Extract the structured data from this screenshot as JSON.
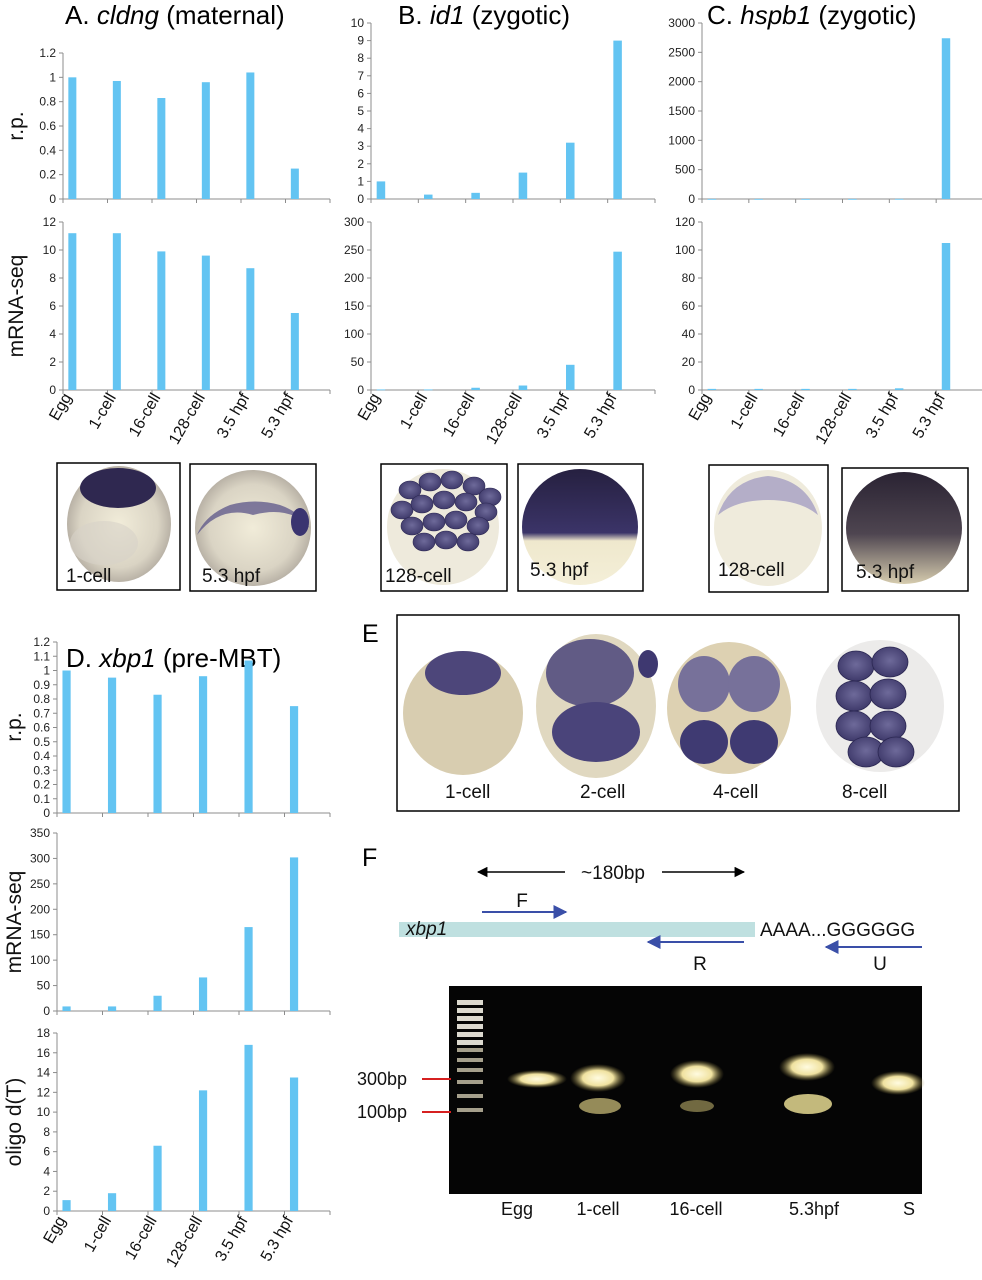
{
  "chart_data": [
    {
      "id": "A",
      "type": "bar",
      "title_prefix": "A.",
      "title_gene": "cldng",
      "title_suffix": "(maternal)",
      "categories": [
        "Egg",
        "1-cell",
        "16-cell",
        "128-cell",
        "3.5 hpf",
        "5.3 hpf"
      ],
      "rows": [
        {
          "ylabel": "r.p.",
          "yticks": [
            "0",
            "0.2",
            "0.4",
            "0.6",
            "0.8",
            "1",
            "1.2"
          ],
          "ylim": [
            0,
            1.2
          ],
          "values": [
            1.0,
            0.97,
            0.83,
            0.96,
            1.04,
            0.25
          ]
        },
        {
          "ylabel": "mRNA-seq",
          "yticks": [
            "0",
            "2",
            "4",
            "6",
            "8",
            "10",
            "12"
          ],
          "ylim": [
            0,
            12
          ],
          "values": [
            11.2,
            11.2,
            9.9,
            9.6,
            8.7,
            5.5
          ]
        }
      ]
    },
    {
      "id": "B",
      "type": "bar",
      "title_prefix": "B.",
      "title_gene": "id1",
      "title_suffix": "(zygotic)",
      "categories": [
        "Egg",
        "1-cell",
        "16-cell",
        "128-cell",
        "3.5 hpf",
        "5.3 hpf"
      ],
      "rows": [
        {
          "ylabel": "",
          "yticks": [
            "0",
            "1",
            "2",
            "3",
            "4",
            "5",
            "6",
            "7",
            "8",
            "9",
            "10"
          ],
          "ylim": [
            0,
            10
          ],
          "values": [
            1.0,
            0.25,
            0.35,
            1.5,
            3.2,
            9.0
          ]
        },
        {
          "ylabel": "",
          "yticks": [
            "0",
            "50",
            "100",
            "150",
            "200",
            "250",
            "300"
          ],
          "ylim": [
            0,
            300
          ],
          "values": [
            1,
            1,
            4,
            8,
            45,
            247
          ]
        }
      ]
    },
    {
      "id": "C",
      "type": "bar",
      "title_prefix": "C.",
      "title_gene": "hspb1",
      "title_suffix": "(zygotic)",
      "categories": [
        "Egg",
        "1-cell",
        "16-cell",
        "128-cell",
        "3.5 hpf",
        "5.3 hpf"
      ],
      "rows": [
        {
          "ylabel": "",
          "yticks": [
            "0",
            "500",
            "1000",
            "1500",
            "2000",
            "2500",
            "3000"
          ],
          "ylim": [
            0,
            3000
          ],
          "values": [
            1,
            1,
            1,
            1,
            2,
            2740
          ]
        },
        {
          "ylabel": "",
          "yticks": [
            "0",
            "20",
            "40",
            "60",
            "80",
            "100",
            "120"
          ],
          "ylim": [
            0,
            120
          ],
          "values": [
            0.8,
            0.8,
            0.8,
            0.8,
            1.2,
            105
          ]
        }
      ]
    },
    {
      "id": "D",
      "type": "bar",
      "title_prefix": "D.",
      "title_gene": "xbp1",
      "title_suffix": "(pre-MBT)",
      "categories": [
        "Egg",
        "1-cell",
        "16-cell",
        "128-cell",
        "3.5 hpf",
        "5.3 hpf"
      ],
      "rows": [
        {
          "ylabel": "r.p.",
          "yticks": [
            "0",
            "0.1",
            "0.2",
            "0.3",
            "0.4",
            "0.5",
            "0.6",
            "0.7",
            "0.8",
            "0.9",
            "1",
            "1.1",
            "1.2"
          ],
          "ylim": [
            0,
            1.2
          ],
          "values": [
            1.0,
            0.95,
            0.83,
            0.96,
            1.07,
            0.75
          ]
        },
        {
          "ylabel": "mRNA-seq",
          "yticks": [
            "0",
            "50",
            "100",
            "150",
            "200",
            "250",
            "300",
            "350"
          ],
          "ylim": [
            0,
            350
          ],
          "values": [
            9,
            9,
            30,
            66,
            165,
            302
          ]
        },
        {
          "ylabel": "oligo d(T)",
          "yticks": [
            "0",
            "2",
            "4",
            "6",
            "8",
            "10",
            "12",
            "14",
            "16",
            "18"
          ],
          "ylim": [
            0,
            18
          ],
          "values": [
            1.1,
            1.8,
            6.6,
            12.2,
            16.8,
            13.5
          ]
        }
      ]
    }
  ],
  "in_situ": {
    "A": [
      "1-cell",
      "5.3 hpf"
    ],
    "B": [
      "128-cell",
      "5.3 hpf"
    ],
    "C": [
      "128-cell",
      "5.3 hpf"
    ]
  },
  "panel_E": {
    "letter": "E",
    "labels": [
      "1-cell",
      "2-cell",
      "4-cell",
      "8-cell"
    ]
  },
  "panel_F": {
    "letter": "F",
    "span_label": "~180bp",
    "gene": "xbp1",
    "tail": "AAAA...GGGGGG",
    "primers": [
      "F",
      "R",
      "U"
    ],
    "markers": [
      "300bp",
      "100bp"
    ],
    "lanes": [
      "Egg",
      "1-cell",
      "16-cell",
      "5.3hpf",
      "S"
    ]
  },
  "colors": {
    "bar": "#63c4f2",
    "stain": "#3d3470",
    "gene_bar": "#bfe0e0",
    "primer_arrow": "#3a4fa8",
    "marker_line": "#d62020",
    "gel_background": "#050505"
  }
}
